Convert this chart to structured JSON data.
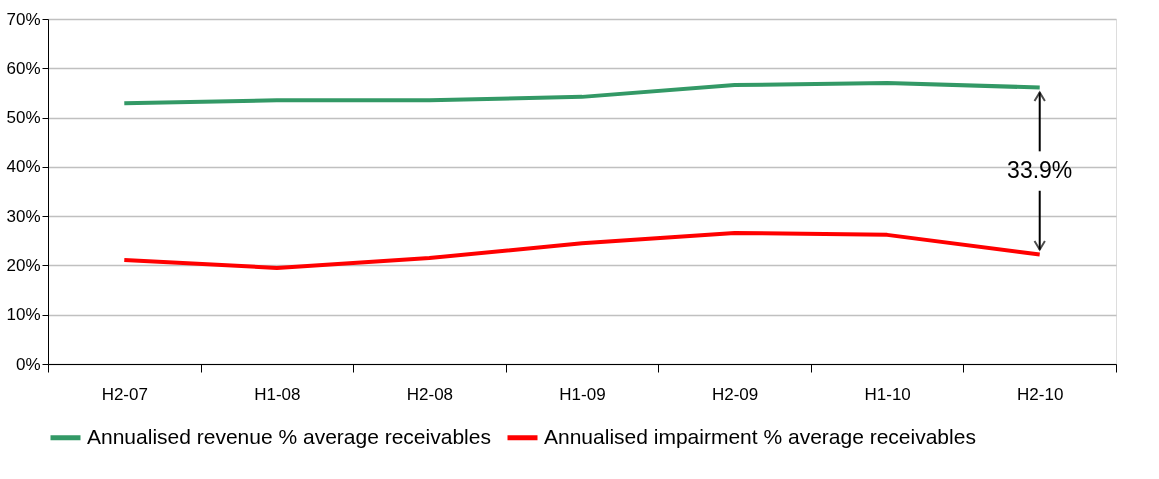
{
  "chart_data": {
    "type": "line",
    "categories": [
      "H2-07",
      "H1-08",
      "H2-08",
      "H1-09",
      "H2-09",
      "H1-10",
      "H2-10"
    ],
    "series": [
      {
        "name": "Annualised revenue % average receivables",
        "color": "#339966",
        "values": [
          52.9,
          53.5,
          53.5,
          54.2,
          56.6,
          57.0,
          56.1
        ]
      },
      {
        "name": "Annualised impairment % average receivables",
        "color": "#ff0000",
        "values": [
          21.1,
          19.5,
          21.5,
          24.5,
          26.6,
          26.2,
          22.2
        ]
      }
    ],
    "ylim": [
      0,
      70
    ],
    "yticks": [
      {
        "value": 0,
        "label": "0%"
      },
      {
        "value": 10,
        "label": "10%"
      },
      {
        "value": 20,
        "label": "20%"
      },
      {
        "value": 30,
        "label": "30%"
      },
      {
        "value": 40,
        "label": "40%"
      },
      {
        "value": 50,
        "label": "50%"
      },
      {
        "value": 60,
        "label": "60%"
      },
      {
        "value": 70,
        "label": "70%"
      }
    ],
    "grid": "y",
    "legend": "bottom",
    "marker": "none",
    "line_style": "solid",
    "annotations": [
      {
        "text": "33.9%",
        "x": "H2-10",
        "y": 56.1
      }
    ]
  }
}
